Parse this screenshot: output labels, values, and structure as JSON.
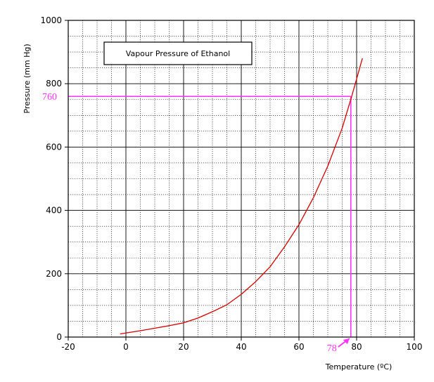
{
  "chart_data": {
    "type": "line",
    "title": "Vapour Pressure of Ethanol",
    "xlabel": "Temperature (ºC)",
    "ylabel": "Pressure (mm Hg)",
    "xlim": [
      -20,
      100
    ],
    "ylim": [
      0,
      1000
    ],
    "x_ticks": [
      -20,
      0,
      20,
      40,
      60,
      80,
      100
    ],
    "x_tick_labels": [
      "-20",
      "0",
      "20",
      "40",
      "60",
      "80",
      "100"
    ],
    "y_ticks": [
      0,
      200,
      400,
      600,
      800,
      1000
    ],
    "y_tick_labels": [
      "0",
      "200",
      "400",
      "600",
      "800",
      "1000"
    ],
    "minor_x_step": 5,
    "minor_y_step": 50,
    "grid": true,
    "series": [
      {
        "color": "#d40000",
        "x": [
          -2,
          5,
          10,
          15,
          20,
          25,
          30,
          35,
          40,
          45,
          50,
          55,
          60,
          65,
          70,
          75,
          78.3,
          80,
          82
        ],
        "y": [
          10,
          20,
          28,
          36,
          45,
          60,
          80,
          102,
          135,
          175,
          222,
          285,
          355,
          440,
          540,
          660,
          760,
          815,
          880
        ]
      }
    ],
    "annotations": {
      "boiling_point": {
        "x": 78,
        "y": 760,
        "color": "#ff33ff",
        "x_label": "78",
        "y_label": "760"
      }
    }
  }
}
